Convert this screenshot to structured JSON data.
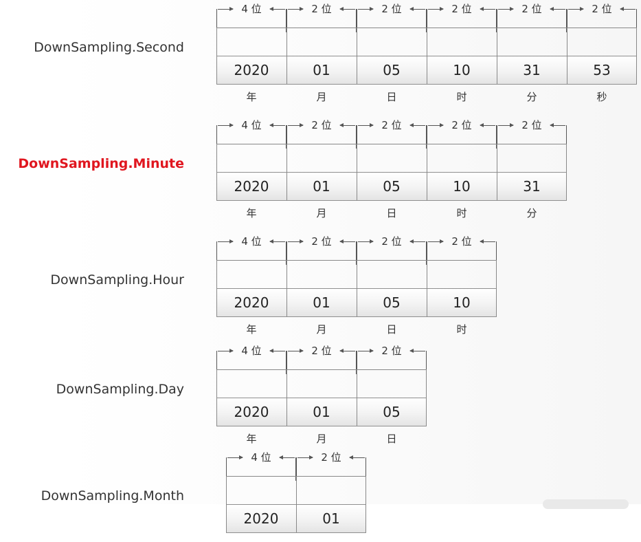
{
  "rows": [
    {
      "label": "DownSampling.Second",
      "highlight": false,
      "cells": [
        {
          "digits": "4 位",
          "value": "2020",
          "unit": "年"
        },
        {
          "digits": "2 位",
          "value": "01",
          "unit": "月"
        },
        {
          "digits": "2 位",
          "value": "05",
          "unit": "日"
        },
        {
          "digits": "2 位",
          "value": "10",
          "unit": "时"
        },
        {
          "digits": "2 位",
          "value": "31",
          "unit": "分"
        },
        {
          "digits": "2 位",
          "value": "53",
          "unit": "秒"
        }
      ]
    },
    {
      "label": "DownSampling.Minute",
      "highlight": true,
      "cells": [
        {
          "digits": "4 位",
          "value": "2020",
          "unit": "年"
        },
        {
          "digits": "2 位",
          "value": "01",
          "unit": "月"
        },
        {
          "digits": "2 位",
          "value": "05",
          "unit": "日"
        },
        {
          "digits": "2 位",
          "value": "10",
          "unit": "时"
        },
        {
          "digits": "2 位",
          "value": "31",
          "unit": "分"
        }
      ]
    },
    {
      "label": "DownSampling.Hour",
      "highlight": false,
      "cells": [
        {
          "digits": "4 位",
          "value": "2020",
          "unit": "年"
        },
        {
          "digits": "2 位",
          "value": "01",
          "unit": "月"
        },
        {
          "digits": "2 位",
          "value": "05",
          "unit": "日"
        },
        {
          "digits": "2 位",
          "value": "10",
          "unit": "时"
        }
      ]
    },
    {
      "label": "DownSampling.Day",
      "highlight": false,
      "cells": [
        {
          "digits": "4 位",
          "value": "2020",
          "unit": "年"
        },
        {
          "digits": "2 位",
          "value": "01",
          "unit": "月"
        },
        {
          "digits": "2 位",
          "value": "05",
          "unit": "日"
        }
      ]
    },
    {
      "label": "DownSampling.Month",
      "highlight": false,
      "cells": [
        {
          "digits": "4 位",
          "value": "2020",
          "unit": ""
        },
        {
          "digits": "2 位",
          "value": "01",
          "unit": ""
        }
      ]
    }
  ],
  "colors": {
    "highlight": "#e0161f",
    "text": "#333333",
    "border": "#8f8f8f"
  }
}
